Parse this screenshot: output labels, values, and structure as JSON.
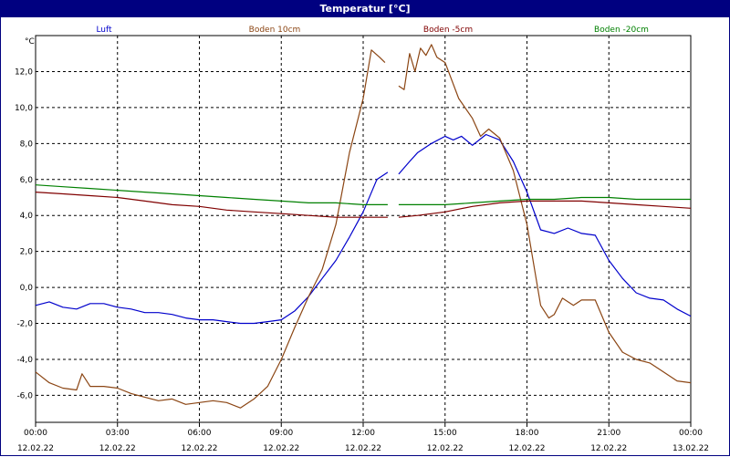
{
  "chart_data": {
    "type": "line",
    "title": "Temperatur [°C]",
    "ylabel": "°C",
    "ylim": [
      -7.5,
      14.0
    ],
    "xlim": [
      0,
      24
    ],
    "yticks": [
      -6,
      -4,
      -2,
      0,
      2,
      4,
      6,
      8,
      10,
      12
    ],
    "ytick_labels": [
      "-6,0",
      "-4,0",
      "-2,0",
      "0,0",
      "2,0",
      "4,0",
      "6,0",
      "8,0",
      "10,0",
      "12,0"
    ],
    "xticks": [
      0,
      3,
      6,
      9,
      12,
      15,
      18,
      21,
      24
    ],
    "xtick_time_labels": [
      "00:00",
      "03:00",
      "06:00",
      "09:00",
      "12:00",
      "15:00",
      "18:00",
      "21:00",
      "00:00"
    ],
    "xtick_date_labels": [
      "12.02.22",
      "12.02.22",
      "12.02.22",
      "12.02.22",
      "12.02.22",
      "12.02.22",
      "12.02.22",
      "12.02.22",
      "13.02.22"
    ],
    "grid": true,
    "legend_position": "top",
    "series": [
      {
        "name": "Luft",
        "color": "#0000cc",
        "segments": [
          [
            [
              0,
              -1.0
            ],
            [
              0.5,
              -0.8
            ],
            [
              1,
              -1.1
            ],
            [
              1.5,
              -1.2
            ],
            [
              2,
              -0.9
            ],
            [
              2.5,
              -0.9
            ],
            [
              3,
              -1.1
            ],
            [
              3.5,
              -1.2
            ],
            [
              4,
              -1.4
            ],
            [
              4.5,
              -1.4
            ],
            [
              5,
              -1.5
            ],
            [
              5.5,
              -1.7
            ],
            [
              6,
              -1.8
            ],
            [
              6.5,
              -1.8
            ],
            [
              7,
              -1.9
            ],
            [
              7.5,
              -2.0
            ],
            [
              8,
              -2.0
            ],
            [
              8.5,
              -1.9
            ],
            [
              9,
              -1.8
            ],
            [
              9.5,
              -1.3
            ],
            [
              10,
              -0.5
            ],
            [
              10.5,
              0.5
            ],
            [
              11,
              1.5
            ],
            [
              11.5,
              2.8
            ],
            [
              12,
              4.2
            ],
            [
              12.5,
              6.0
            ],
            [
              12.9,
              6.4
            ]
          ],
          [
            [
              13.3,
              6.3
            ],
            [
              13.7,
              7.0
            ],
            [
              14,
              7.5
            ],
            [
              14.5,
              8.0
            ],
            [
              15,
              8.4
            ],
            [
              15.3,
              8.2
            ],
            [
              15.6,
              8.4
            ],
            [
              16,
              7.9
            ],
            [
              16.5,
              8.5
            ],
            [
              17,
              8.2
            ],
            [
              17.5,
              7.0
            ],
            [
              18,
              5.3
            ],
            [
              18.5,
              3.2
            ],
            [
              19,
              3.0
            ],
            [
              19.5,
              3.3
            ],
            [
              20,
              3.0
            ],
            [
              20.5,
              2.9
            ],
            [
              21,
              1.5
            ],
            [
              21.5,
              0.5
            ],
            [
              22,
              -0.3
            ],
            [
              22.5,
              -0.6
            ],
            [
              23,
              -0.7
            ],
            [
              23.5,
              -1.2
            ],
            [
              24,
              -1.6
            ]
          ]
        ]
      },
      {
        "name": "Boden 10cm",
        "color": "#8b4513",
        "segments": [
          [
            [
              0,
              -4.7
            ],
            [
              0.5,
              -5.3
            ],
            [
              1,
              -5.6
            ],
            [
              1.5,
              -5.7
            ],
            [
              1.7,
              -4.8
            ],
            [
              2,
              -5.5
            ],
            [
              2.5,
              -5.5
            ],
            [
              3,
              -5.6
            ],
            [
              3.5,
              -5.9
            ],
            [
              4,
              -6.1
            ],
            [
              4.5,
              -6.3
            ],
            [
              5,
              -6.2
            ],
            [
              5.5,
              -6.5
            ],
            [
              6,
              -6.4
            ],
            [
              6.5,
              -6.3
            ],
            [
              7,
              -6.4
            ],
            [
              7.5,
              -6.7
            ],
            [
              8,
              -6.2
            ],
            [
              8.5,
              -5.5
            ],
            [
              9,
              -4.0
            ],
            [
              9.5,
              -2.2
            ],
            [
              10,
              -0.5
            ],
            [
              10.5,
              1.0
            ],
            [
              11,
              3.5
            ],
            [
              11.5,
              7.5
            ],
            [
              12,
              10.5
            ],
            [
              12.3,
              13.2
            ],
            [
              12.6,
              12.8
            ],
            [
              12.8,
              12.5
            ]
          ],
          [
            [
              13.3,
              11.2
            ],
            [
              13.5,
              11.0
            ],
            [
              13.7,
              13.0
            ],
            [
              13.9,
              12.0
            ],
            [
              14.1,
              13.3
            ],
            [
              14.3,
              12.9
            ],
            [
              14.5,
              13.5
            ],
            [
              14.7,
              12.8
            ],
            [
              15,
              12.5
            ],
            [
              15.5,
              10.5
            ],
            [
              16,
              9.4
            ],
            [
              16.3,
              8.4
            ],
            [
              16.6,
              8.8
            ],
            [
              17,
              8.3
            ],
            [
              17.5,
              6.5
            ],
            [
              18,
              3.5
            ],
            [
              18.5,
              -1.0
            ],
            [
              18.8,
              -1.7
            ],
            [
              19,
              -1.5
            ],
            [
              19.3,
              -0.6
            ],
            [
              19.7,
              -1.0
            ],
            [
              20,
              -0.7
            ],
            [
              20.5,
              -0.7
            ],
            [
              21,
              -2.5
            ],
            [
              21.5,
              -3.6
            ],
            [
              22,
              -4.0
            ],
            [
              22.5,
              -4.2
            ],
            [
              23,
              -4.7
            ],
            [
              23.5,
              -5.2
            ],
            [
              24,
              -5.3
            ]
          ]
        ]
      },
      {
        "name": "Boden -5cm",
        "color": "#800000",
        "segments": [
          [
            [
              0,
              5.3
            ],
            [
              1,
              5.2
            ],
            [
              2,
              5.1
            ],
            [
              3,
              5.0
            ],
            [
              4,
              4.8
            ],
            [
              5,
              4.6
            ],
            [
              6,
              4.5
            ],
            [
              7,
              4.3
            ],
            [
              8,
              4.2
            ],
            [
              9,
              4.1
            ],
            [
              10,
              4.0
            ],
            [
              11,
              3.9
            ],
            [
              12,
              3.9
            ],
            [
              12.9,
              3.9
            ]
          ],
          [
            [
              13.3,
              3.9
            ],
            [
              14,
              4.0
            ],
            [
              15,
              4.2
            ],
            [
              16,
              4.5
            ],
            [
              17,
              4.7
            ],
            [
              18,
              4.8
            ],
            [
              19,
              4.8
            ],
            [
              20,
              4.8
            ],
            [
              21,
              4.7
            ],
            [
              22,
              4.6
            ],
            [
              23,
              4.5
            ],
            [
              24,
              4.4
            ]
          ]
        ]
      },
      {
        "name": "Boden -20cm",
        "color": "#008000",
        "segments": [
          [
            [
              0,
              5.7
            ],
            [
              1,
              5.6
            ],
            [
              2,
              5.5
            ],
            [
              3,
              5.4
            ],
            [
              4,
              5.3
            ],
            [
              5,
              5.2
            ],
            [
              6,
              5.1
            ],
            [
              7,
              5.0
            ],
            [
              8,
              4.9
            ],
            [
              9,
              4.8
            ],
            [
              10,
              4.7
            ],
            [
              11,
              4.7
            ],
            [
              12,
              4.6
            ],
            [
              12.9,
              4.6
            ]
          ],
          [
            [
              13.3,
              4.6
            ],
            [
              14,
              4.6
            ],
            [
              15,
              4.6
            ],
            [
              16,
              4.7
            ],
            [
              17,
              4.8
            ],
            [
              18,
              4.9
            ],
            [
              19,
              4.9
            ],
            [
              20,
              5.0
            ],
            [
              21,
              5.0
            ],
            [
              22,
              4.9
            ],
            [
              23,
              4.9
            ],
            [
              24,
              4.9
            ]
          ]
        ]
      }
    ]
  }
}
